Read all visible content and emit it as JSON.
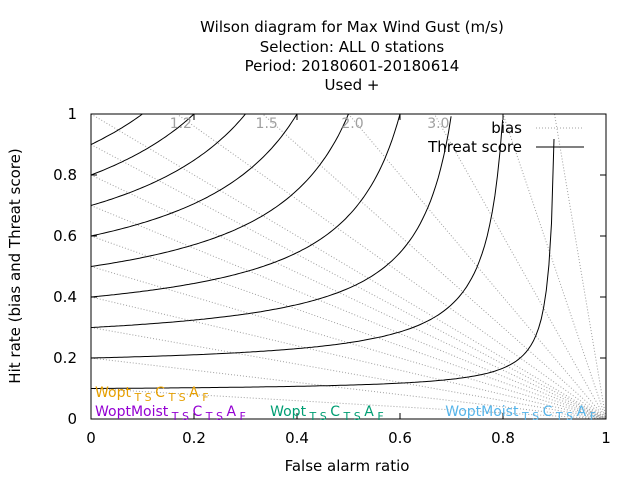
{
  "chart_data": {
    "type": "line",
    "title_lines": [
      "Wilson diagram  for Max Wind Gust (m/s)",
      "Selection: ALL      0 stations",
      "Period: 20180601-20180614",
      "Used   +"
    ],
    "xlabel": "False alarm ratio",
    "ylabel": "Hit rate (bias and Threat score)",
    "xlim": [
      0,
      1
    ],
    "ylim": [
      0,
      1
    ],
    "x_ticks": [
      "0",
      "0.2",
      "0.4",
      "0.6",
      "0.8",
      "1"
    ],
    "y_ticks": [
      "0",
      "0.2",
      "0.4",
      "0.6",
      "0.8",
      "1"
    ],
    "legend": {
      "position": "top-right",
      "entries": [
        {
          "label": "bias",
          "style": "dotted",
          "color": "#a0a0a0"
        },
        {
          "label": "Threat score",
          "style": "solid",
          "color": "#000000"
        }
      ]
    },
    "bias_labels": [
      "1.2",
      "1.5",
      "2.0",
      "3.0"
    ],
    "bias_values": [
      0.1,
      0.2,
      0.3,
      0.4,
      0.5,
      0.6,
      0.7,
      0.8,
      0.9,
      1.0,
      1.2,
      1.5,
      2.0,
      3.0,
      5.0,
      10.0
    ],
    "threat_score_values": [
      0.1,
      0.2,
      0.3,
      0.4,
      0.5,
      0.6,
      0.7,
      0.8,
      0.9
    ],
    "series_labels": [
      {
        "text": "Wopt",
        "sub": "T S",
        "sub2": "C",
        "tail": "A",
        "tail_sub": "F",
        "color": "#e69f00",
        "anchor_x": 0.0,
        "anchor_y": 0.04
      },
      {
        "text": "WoptMoist",
        "sub": "T S",
        "sub2": "C",
        "tail": "A",
        "tail_sub": "F",
        "color": "#9400d3",
        "anchor_x": 0.0,
        "anchor_y": 0.0
      },
      {
        "text": "Wopt",
        "sub": "T S",
        "sub2": "C",
        "tail": "A",
        "tail_sub": "F",
        "color": "#009e73",
        "anchor_x": 0.34,
        "anchor_y": 0.0
      },
      {
        "text": "WoptMoist",
        "sub": "T S",
        "sub2": "C",
        "tail": "A",
        "tail_sub": "F",
        "color": "#56b4e9",
        "anchor_x": 0.68,
        "anchor_y": 0.0
      }
    ],
    "grid": false
  }
}
